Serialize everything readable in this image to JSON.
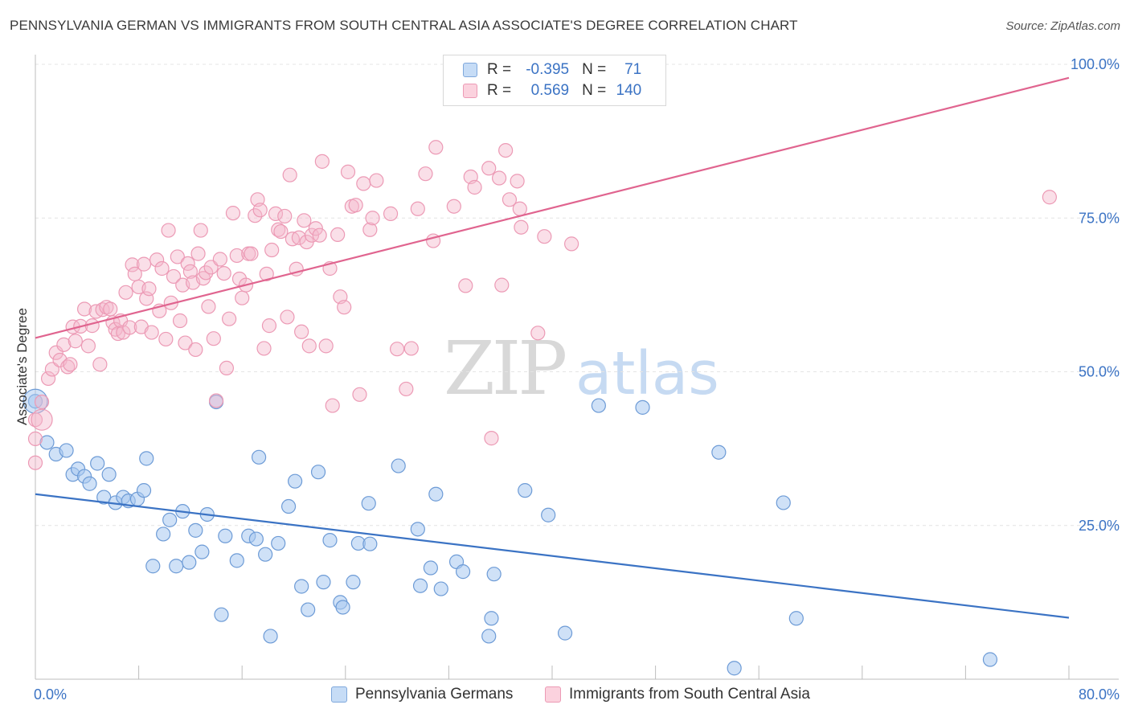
{
  "title": "PENNSYLVANIA GERMAN VS IMMIGRANTS FROM SOUTH CENTRAL ASIA ASSOCIATE'S DEGREE CORRELATION CHART",
  "source": "Source: ZipAtlas.com",
  "watermark": {
    "zip": "ZIP",
    "atlas": "atlas"
  },
  "legend": {
    "rows": [
      {
        "r_label": "R =",
        "r_value": "-0.395",
        "n_label": "N =",
        "n_value": "71",
        "color": "#a8c8f0"
      },
      {
        "r_label": "R =",
        "r_value": "0.569",
        "n_label": "N =",
        "n_value": "140",
        "color": "#f5b8cc"
      }
    ]
  },
  "bottom_legend": {
    "blue_label": "Pennsylvania Germans",
    "pink_label": "Immigrants from South Central Asia"
  },
  "chart_data": {
    "type": "scatter",
    "xlabel": "",
    "ylabel": "Associate's Degree",
    "xlim": [
      0,
      80
    ],
    "ylim": [
      0,
      100
    ],
    "x_tick_labels": [
      "0.0%",
      "80.0%"
    ],
    "y_tick_labels": [
      "25.0%",
      "50.0%",
      "75.0%",
      "100.0%"
    ],
    "y_ticks": [
      25,
      50,
      75,
      100
    ],
    "grid": true,
    "colors": {
      "blue": "#3b73c4",
      "blue_fill": "#a8c8f0",
      "pink": "#e0648f",
      "pink_fill": "#f5b8cc"
    },
    "series": [
      {
        "name": "Pennsylvania Germans",
        "trend": {
          "x": [
            0,
            80
          ],
          "y": [
            30.1,
            10.0
          ]
        },
        "points": [
          [
            0.0,
            45.2
          ],
          [
            0.9,
            38.5
          ],
          [
            1.6,
            36.6
          ],
          [
            2.4,
            37.2
          ],
          [
            2.9,
            33.3
          ],
          [
            3.3,
            34.2
          ],
          [
            3.8,
            33.0
          ],
          [
            4.2,
            31.8
          ],
          [
            4.8,
            35.1
          ],
          [
            5.3,
            29.6
          ],
          [
            5.7,
            33.3
          ],
          [
            6.2,
            28.7
          ],
          [
            6.8,
            29.6
          ],
          [
            7.2,
            29.0
          ],
          [
            7.9,
            29.3
          ],
          [
            8.4,
            30.7
          ],
          [
            8.6,
            35.9
          ],
          [
            9.1,
            18.4
          ],
          [
            9.9,
            23.6
          ],
          [
            10.4,
            25.9
          ],
          [
            10.9,
            18.4
          ],
          [
            11.4,
            27.3
          ],
          [
            11.9,
            19.0
          ],
          [
            12.4,
            24.2
          ],
          [
            12.9,
            20.7
          ],
          [
            13.3,
            26.8
          ],
          [
            14.0,
            45.1
          ],
          [
            14.4,
            10.5
          ],
          [
            14.7,
            23.3
          ],
          [
            15.6,
            19.3
          ],
          [
            16.5,
            23.3
          ],
          [
            17.1,
            22.8
          ],
          [
            17.3,
            36.1
          ],
          [
            17.8,
            20.3
          ],
          [
            18.2,
            7.0
          ],
          [
            18.8,
            22.1
          ],
          [
            19.6,
            28.1
          ],
          [
            20.1,
            32.2
          ],
          [
            20.6,
            15.1
          ],
          [
            21.1,
            11.3
          ],
          [
            21.9,
            33.7
          ],
          [
            22.3,
            15.8
          ],
          [
            22.8,
            22.6
          ],
          [
            23.6,
            12.5
          ],
          [
            23.8,
            11.7
          ],
          [
            24.6,
            15.8
          ],
          [
            25.0,
            22.1
          ],
          [
            25.8,
            28.6
          ],
          [
            25.9,
            22.0
          ],
          [
            28.1,
            34.7
          ],
          [
            29.6,
            24.4
          ],
          [
            29.8,
            15.2
          ],
          [
            30.6,
            18.1
          ],
          [
            31.0,
            30.1
          ],
          [
            31.4,
            14.7
          ],
          [
            32.6,
            19.1
          ],
          [
            33.1,
            17.5
          ],
          [
            35.1,
            7.0
          ],
          [
            35.5,
            17.1
          ],
          [
            35.3,
            9.9
          ],
          [
            37.9,
            30.7
          ],
          [
            39.7,
            26.7
          ],
          [
            41.0,
            7.5
          ],
          [
            43.6,
            44.5
          ],
          [
            47.0,
            44.2
          ],
          [
            52.9,
            36.9
          ],
          [
            54.1,
            1.8
          ],
          [
            57.9,
            28.7
          ],
          [
            58.9,
            9.9
          ],
          [
            73.9,
            3.2
          ]
        ]
      },
      {
        "name": "Immigrants from South Central Asia",
        "trend": {
          "x": [
            0,
            80
          ],
          "y": [
            55.5,
            97.8
          ]
        },
        "points": [
          [
            0.0,
            42.2
          ],
          [
            0.0,
            39.1
          ],
          [
            0.0,
            35.2
          ],
          [
            0.5,
            45.1
          ],
          [
            1.0,
            48.9
          ],
          [
            1.3,
            50.4
          ],
          [
            1.6,
            53.1
          ],
          [
            1.9,
            51.9
          ],
          [
            2.2,
            54.4
          ],
          [
            2.5,
            50.8
          ],
          [
            2.7,
            51.2
          ],
          [
            2.9,
            57.3
          ],
          [
            3.1,
            55.0
          ],
          [
            3.5,
            57.4
          ],
          [
            3.8,
            60.2
          ],
          [
            4.1,
            54.2
          ],
          [
            4.4,
            57.5
          ],
          [
            4.7,
            59.8
          ],
          [
            5.0,
            51.2
          ],
          [
            5.2,
            60.1
          ],
          [
            5.5,
            60.5
          ],
          [
            5.8,
            60.2
          ],
          [
            6.0,
            58.0
          ],
          [
            6.2,
            56.9
          ],
          [
            6.4,
            56.2
          ],
          [
            6.6,
            58.3
          ],
          [
            6.8,
            56.4
          ],
          [
            7.0,
            62.9
          ],
          [
            7.3,
            57.2
          ],
          [
            7.5,
            67.4
          ],
          [
            7.7,
            65.9
          ],
          [
            8.0,
            63.8
          ],
          [
            8.2,
            57.3
          ],
          [
            8.4,
            67.5
          ],
          [
            8.6,
            61.9
          ],
          [
            8.8,
            63.5
          ],
          [
            9.0,
            56.4
          ],
          [
            9.4,
            68.2
          ],
          [
            9.6,
            59.9
          ],
          [
            9.8,
            66.8
          ],
          [
            10.1,
            55.3
          ],
          [
            10.3,
            73.0
          ],
          [
            10.5,
            61.2
          ],
          [
            10.7,
            65.5
          ],
          [
            11.0,
            68.7
          ],
          [
            11.2,
            58.3
          ],
          [
            11.4,
            64.1
          ],
          [
            11.6,
            54.7
          ],
          [
            11.8,
            67.6
          ],
          [
            12.0,
            66.3
          ],
          [
            12.2,
            64.5
          ],
          [
            12.4,
            53.6
          ],
          [
            12.6,
            69.2
          ],
          [
            12.8,
            73.0
          ],
          [
            13.0,
            65.2
          ],
          [
            13.2,
            66.1
          ],
          [
            13.4,
            60.6
          ],
          [
            13.6,
            67.0
          ],
          [
            13.8,
            55.4
          ],
          [
            14.0,
            45.3
          ],
          [
            14.3,
            68.3
          ],
          [
            14.6,
            66.0
          ],
          [
            14.8,
            50.6
          ],
          [
            15.0,
            58.6
          ],
          [
            15.3,
            75.8
          ],
          [
            15.6,
            68.9
          ],
          [
            15.8,
            65.1
          ],
          [
            16.0,
            62.0
          ],
          [
            16.3,
            64.1
          ],
          [
            16.5,
            69.2
          ],
          [
            16.7,
            69.2
          ],
          [
            17.0,
            75.4
          ],
          [
            17.2,
            78.0
          ],
          [
            17.4,
            76.3
          ],
          [
            17.7,
            53.8
          ],
          [
            17.9,
            65.9
          ],
          [
            18.1,
            57.5
          ],
          [
            18.3,
            69.8
          ],
          [
            18.6,
            75.7
          ],
          [
            18.8,
            73.1
          ],
          [
            19.0,
            72.8
          ],
          [
            19.3,
            75.3
          ],
          [
            19.5,
            58.9
          ],
          [
            19.7,
            82.0
          ],
          [
            19.9,
            71.6
          ],
          [
            20.2,
            66.7
          ],
          [
            20.4,
            71.8
          ],
          [
            20.6,
            56.5
          ],
          [
            20.8,
            74.6
          ],
          [
            21.0,
            71.1
          ],
          [
            21.2,
            54.2
          ],
          [
            21.4,
            72.2
          ],
          [
            21.7,
            73.3
          ],
          [
            22.0,
            72.2
          ],
          [
            22.2,
            84.2
          ],
          [
            22.5,
            54.2
          ],
          [
            22.8,
            66.8
          ],
          [
            23.0,
            44.5
          ],
          [
            23.4,
            72.3
          ],
          [
            23.6,
            62.2
          ],
          [
            23.9,
            60.5
          ],
          [
            24.2,
            82.5
          ],
          [
            24.5,
            76.9
          ],
          [
            24.8,
            77.1
          ],
          [
            25.1,
            46.3
          ],
          [
            25.4,
            80.6
          ],
          [
            25.9,
            73.1
          ],
          [
            26.1,
            75.0
          ],
          [
            26.4,
            81.1
          ],
          [
            27.5,
            75.7
          ],
          [
            28.0,
            53.7
          ],
          [
            28.7,
            47.2
          ],
          [
            29.1,
            53.8
          ],
          [
            29.6,
            76.5
          ],
          [
            30.2,
            82.2
          ],
          [
            30.8,
            71.3
          ],
          [
            31.0,
            86.5
          ],
          [
            32.4,
            76.9
          ],
          [
            33.3,
            64.0
          ],
          [
            33.7,
            81.7
          ],
          [
            34.0,
            80.0
          ],
          [
            35.1,
            83.1
          ],
          [
            35.3,
            39.2
          ],
          [
            35.9,
            81.5
          ],
          [
            36.1,
            64.1
          ],
          [
            36.4,
            86.0
          ],
          [
            36.7,
            78.0
          ],
          [
            37.3,
            81.0
          ],
          [
            37.5,
            76.5
          ],
          [
            37.6,
            73.5
          ],
          [
            38.9,
            56.3
          ],
          [
            39.4,
            72.0
          ],
          [
            41.5,
            70.8
          ],
          [
            78.5,
            78.4
          ]
        ]
      }
    ]
  }
}
